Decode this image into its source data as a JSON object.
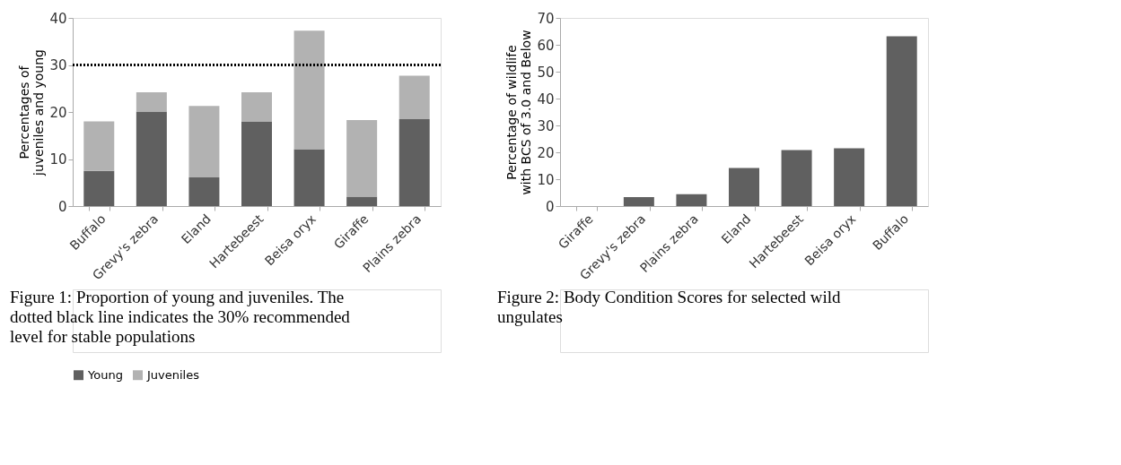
{
  "chart_data": [
    {
      "type": "bar",
      "stacked": true,
      "ylabel": "Percentages of juveniles and young",
      "categories": [
        "Buffalo",
        "Grevy's zebra",
        "Eland",
        "Hartebeest",
        "Beisa oryx",
        "Giraffe",
        "Plains zebra"
      ],
      "series": [
        {
          "name": "Young",
          "color": "#606060",
          "values": [
            7.5,
            20.1,
            6.1,
            18.0,
            12.1,
            2.0,
            18.5
          ]
        },
        {
          "name": "Juveniles",
          "color": "#b2b2b2",
          "values": [
            10.5,
            4.1,
            15.2,
            6.2,
            25.2,
            16.3,
            9.2
          ]
        }
      ],
      "ylim": [
        0,
        40
      ],
      "yticks": [
        0,
        10,
        20,
        30,
        40
      ],
      "grid": false,
      "legend": "bottom",
      "ref_lines": [
        {
          "axis": "y",
          "value": 30,
          "color": "#000000",
          "line_style": "dotted"
        }
      ],
      "annotations": [
        "Figure 1: Proportion of young and juveniles. The dotted black line indicates the 30% recommended level for stable populations"
      ]
    },
    {
      "type": "bar",
      "ylabel": "Percentage of wildlife with BCS of 3.0 and Below",
      "categories": [
        "Giraffe",
        "Grevy's zebra",
        "Plains zebra",
        "Eland",
        "Hartebeest",
        "Beisa oryx",
        "Buffalo"
      ],
      "series": [
        {
          "color": "#606060",
          "values": [
            0,
            3.3,
            4.4,
            14.2,
            20.8,
            21.5,
            63.2
          ]
        }
      ],
      "ylim": [
        0,
        70
      ],
      "yticks": [
        0,
        10,
        20,
        30,
        40,
        50,
        60,
        70
      ],
      "grid": false,
      "annotations": [
        "Figure 2: Body Condition Scores for selected wild ungulates"
      ]
    }
  ]
}
